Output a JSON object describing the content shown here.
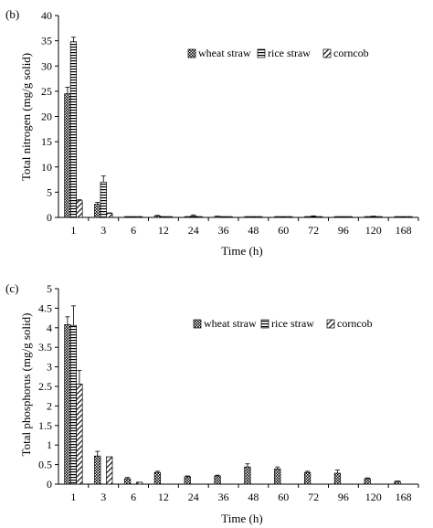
{
  "chart_data": [
    {
      "panel_label": "(b)",
      "type": "bar",
      "xlabel": "Time (h)",
      "ylabel": "Total nitrogen (mg/g solid)",
      "categories": [
        "1",
        "3",
        "6",
        "12",
        "24",
        "36",
        "48",
        "60",
        "72",
        "96",
        "120",
        "168"
      ],
      "ylim": [
        0,
        40
      ],
      "yticks": [
        0,
        5,
        10,
        15,
        20,
        25,
        30,
        35,
        40
      ],
      "legend_position": "top-right",
      "series": [
        {
          "name": "wheat straw",
          "pattern": "dots",
          "values": [
            24.5,
            2.6,
            0.1,
            0.3,
            0.1,
            0.2,
            0.1,
            0.1,
            0.1,
            0.1,
            0.1,
            0.1
          ],
          "errors": [
            1.3,
            0.4,
            0.05,
            0.1,
            0.05,
            0.05,
            0.05,
            0.05,
            0.05,
            0.05,
            0.05,
            0.05
          ]
        },
        {
          "name": "rice straw",
          "pattern": "horizontal-lines",
          "values": [
            34.8,
            7.0,
            0.1,
            0.1,
            0.3,
            0.1,
            0.1,
            0.1,
            0.2,
            0.1,
            0.2,
            0.1
          ],
          "errors": [
            0.9,
            1.2,
            0.05,
            0.05,
            0.2,
            0.05,
            0.05,
            0.05,
            0.1,
            0.05,
            0.05,
            0.05
          ]
        },
        {
          "name": "corncob",
          "pattern": "diagonal-lines",
          "values": [
            3.3,
            0.8,
            0.1,
            0.1,
            0.1,
            0.1,
            0.1,
            0.1,
            0.1,
            0.1,
            0.1,
            0.1
          ],
          "errors": [
            0.2,
            0.1,
            0.05,
            0.05,
            0.05,
            0.05,
            0.05,
            0.05,
            0.05,
            0.05,
            0.05,
            0.05
          ]
        }
      ]
    },
    {
      "panel_label": "(c)",
      "type": "bar",
      "xlabel": "Time (h)",
      "ylabel": "Total phosphorus (mg/g solid)",
      "categories": [
        "1",
        "3",
        "6",
        "12",
        "24",
        "36",
        "48",
        "60",
        "72",
        "96",
        "120",
        "168"
      ],
      "ylim": [
        0,
        5
      ],
      "yticks": [
        0,
        0.5,
        1,
        1.5,
        2,
        2.5,
        3,
        3.5,
        4,
        4.5,
        5
      ],
      "legend_position": "top-right",
      "series": [
        {
          "name": "wheat straw",
          "pattern": "dots",
          "values": [
            4.08,
            0.72,
            0.14,
            0.3,
            0.19,
            0.21,
            0.44,
            0.39,
            0.3,
            0.28,
            0.14,
            0.07
          ],
          "errors": [
            0.2,
            0.12,
            0.03,
            0.03,
            0.02,
            0.02,
            0.08,
            0.05,
            0.03,
            0.08,
            0.02,
            0.01
          ]
        },
        {
          "name": "rice straw",
          "pattern": "horizontal-lines",
          "values": [
            4.06,
            0.0,
            0.0,
            0.0,
            0.0,
            0.0,
            0.0,
            0.0,
            0.0,
            0.0,
            0.0,
            0.0
          ],
          "errors": [
            0.5,
            0,
            0,
            0,
            0,
            0,
            0,
            0,
            0,
            0,
            0,
            0
          ]
        },
        {
          "name": "corncob",
          "pattern": "diagonal-lines",
          "values": [
            2.56,
            0.7,
            0.05,
            0.0,
            0.0,
            0.0,
            0.0,
            0.0,
            0.0,
            0.0,
            0.0,
            0.0
          ],
          "errors": [
            0.35,
            0,
            0,
            0,
            0,
            0,
            0,
            0,
            0,
            0,
            0,
            0
          ]
        }
      ]
    }
  ]
}
